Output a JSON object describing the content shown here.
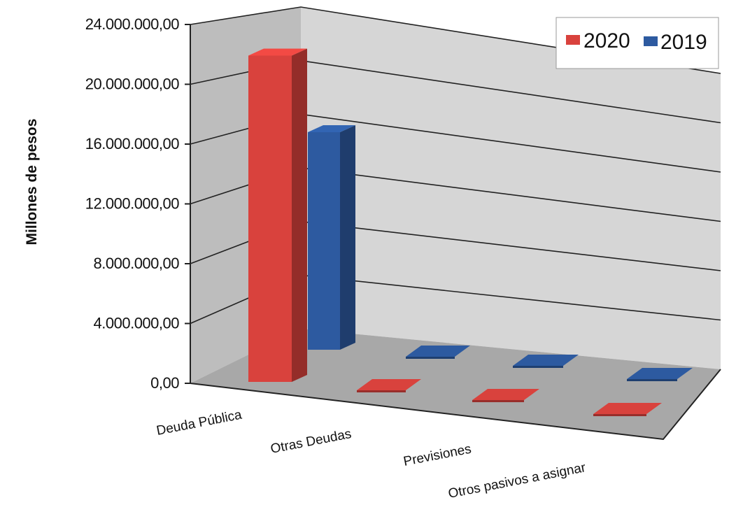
{
  "chart_data": {
    "type": "bar",
    "style": "3d-clustered-depth",
    "categories": [
      "Deuda Pública",
      "Otras Deudas",
      "Previsiones",
      "Otros pasivos a asignar"
    ],
    "series": [
      {
        "name": "2020",
        "color": "#d9423d",
        "values": [
          22500000,
          0,
          0,
          0
        ]
      },
      {
        "name": "2019",
        "color": "#2d5aa0",
        "values": [
          15000000,
          0,
          0,
          0
        ]
      }
    ],
    "ylabel": "Millones de pesos",
    "ylim": [
      0,
      24000000
    ],
    "yticks": [
      "0,00",
      "4.000.000,00",
      "8.000.000,00",
      "12.000.000,00",
      "16.000.000,00",
      "20.000.000,00",
      "24.000.000,00"
    ],
    "grid": true,
    "legend_position": "top-right",
    "colors": {
      "wall": "#d2d2d2",
      "floor": "#a6a6a6",
      "side_wall": "#b8b8b8"
    }
  }
}
